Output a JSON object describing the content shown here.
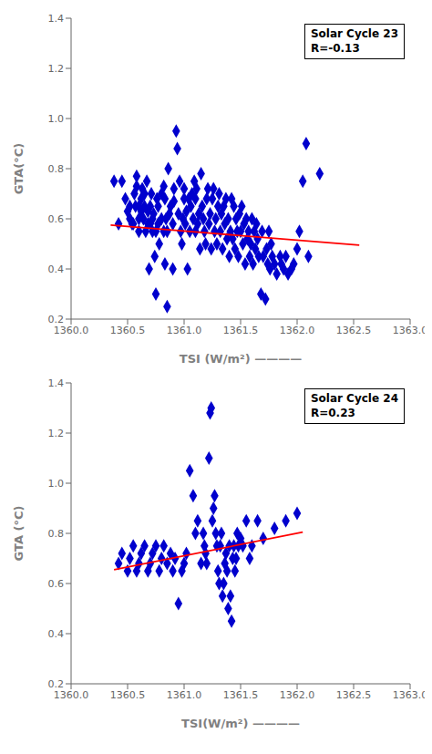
{
  "chart_data": [
    {
      "type": "scatter",
      "title": "Solar Cycle 23\nR=-0.13",
      "x_label": "TSI (W/m²) ————",
      "y_label": "GTA(°C)",
      "xlim": [
        1360.0,
        1363.0
      ],
      "ylim": [
        0.2,
        1.4
      ],
      "xticks": [
        {
          "value": 1360.0,
          "label": "1360.0"
        },
        1360.5,
        {
          "value": 1361.0,
          "label": "1361.0"
        },
        1361.5,
        {
          "value": 1362.0,
          "label": "1362.0"
        },
        1362.5,
        {
          "value": 1363.0,
          "label": "1363.0"
        }
      ],
      "yticks": [
        0.2,
        0.4,
        0.6,
        0.8,
        {
          "value": 1.0,
          "label": "1.0"
        },
        1.2,
        1.4
      ],
      "grid": false,
      "series": [
        {
          "type": "scatter",
          "color": "#0000CD",
          "marker": "diamond",
          "x": [
            1360.38,
            1360.42,
            1360.45,
            1360.48,
            1360.5,
            1360.52,
            1360.52,
            1360.54,
            1360.55,
            1360.56,
            1360.57,
            1360.58,
            1360.58,
            1360.6,
            1360.6,
            1360.6,
            1360.62,
            1360.62,
            1360.63,
            1360.64,
            1360.65,
            1360.65,
            1360.66,
            1360.67,
            1360.68,
            1360.68,
            1360.69,
            1360.7,
            1360.7,
            1360.71,
            1360.72,
            1360.72,
            1360.73,
            1360.74,
            1360.75,
            1360.75,
            1360.76,
            1360.77,
            1360.77,
            1360.78,
            1360.8,
            1360.8,
            1360.82,
            1360.82,
            1360.83,
            1360.83,
            1360.84,
            1360.85,
            1360.85,
            1360.86,
            1360.87,
            1360.88,
            1360.9,
            1360.9,
            1360.91,
            1360.91,
            1360.93,
            1360.94,
            1360.95,
            1360.96,
            1360.97,
            1360.98,
            1360.99,
            1361.0,
            1361.0,
            1361.01,
            1361.02,
            1361.03,
            1361.04,
            1361.05,
            1361.06,
            1361.07,
            1361.08,
            1361.09,
            1361.1,
            1361.1,
            1361.11,
            1361.12,
            1361.13,
            1361.14,
            1361.15,
            1361.16,
            1361.17,
            1361.18,
            1361.19,
            1361.2,
            1361.21,
            1361.22,
            1361.23,
            1361.24,
            1361.25,
            1361.26,
            1361.27,
            1361.28,
            1361.29,
            1361.3,
            1361.31,
            1361.32,
            1361.33,
            1361.34,
            1361.35,
            1361.36,
            1361.37,
            1361.38,
            1361.39,
            1361.4,
            1361.41,
            1361.42,
            1361.43,
            1361.44,
            1361.45,
            1361.46,
            1361.47,
            1361.48,
            1361.49,
            1361.5,
            1361.51,
            1361.52,
            1361.53,
            1361.54,
            1361.55,
            1361.56,
            1361.57,
            1361.58,
            1361.59,
            1361.6,
            1361.61,
            1361.62,
            1361.63,
            1361.64,
            1361.65,
            1361.66,
            1361.68,
            1361.69,
            1361.7,
            1361.72,
            1361.73,
            1361.74,
            1361.75,
            1361.76,
            1361.77,
            1361.78,
            1361.8,
            1361.82,
            1361.85,
            1361.86,
            1361.88,
            1361.9,
            1361.92,
            1361.95,
            1361.97,
            1362.0,
            1362.02,
            1362.05,
            1362.08,
            1362.1,
            1362.2
          ],
          "values": [
            0.75,
            0.58,
            0.75,
            0.68,
            0.63,
            0.6,
            0.65,
            0.58,
            0.58,
            0.7,
            0.65,
            0.73,
            0.77,
            0.55,
            0.6,
            0.65,
            0.63,
            0.68,
            0.72,
            0.6,
            0.65,
            0.7,
            0.55,
            0.75,
            0.58,
            0.63,
            0.4,
            0.58,
            0.65,
            0.7,
            0.55,
            0.6,
            0.62,
            0.45,
            0.3,
            0.55,
            0.68,
            0.58,
            0.65,
            0.5,
            0.6,
            0.7,
            0.55,
            0.73,
            0.42,
            0.68,
            0.6,
            0.25,
            0.55,
            0.8,
            0.62,
            0.65,
            0.4,
            0.58,
            0.67,
            0.72,
            0.95,
            0.88,
            0.62,
            0.75,
            0.55,
            0.5,
            0.6,
            0.68,
            0.72,
            0.58,
            0.63,
            0.4,
            0.68,
            0.55,
            0.65,
            0.7,
            0.6,
            0.75,
            0.55,
            0.68,
            0.72,
            0.58,
            0.62,
            0.48,
            0.78,
            0.65,
            0.6,
            0.55,
            0.5,
            0.68,
            0.72,
            0.58,
            0.62,
            0.48,
            0.68,
            0.72,
            0.55,
            0.6,
            0.5,
            0.65,
            0.7,
            0.55,
            0.62,
            0.48,
            0.65,
            0.58,
            0.68,
            0.52,
            0.6,
            0.45,
            0.55,
            0.68,
            0.52,
            0.65,
            0.48,
            0.6,
            0.55,
            0.45,
            0.62,
            0.55,
            0.65,
            0.5,
            0.58,
            0.42,
            0.6,
            0.52,
            0.55,
            0.45,
            0.5,
            0.6,
            0.42,
            0.55,
            0.48,
            0.58,
            0.52,
            0.45,
            0.3,
            0.55,
            0.45,
            0.28,
            0.48,
            0.42,
            0.55,
            0.4,
            0.5,
            0.45,
            0.42,
            0.38,
            0.45,
            0.42,
            0.4,
            0.45,
            0.38,
            0.4,
            0.42,
            0.48,
            0.55,
            0.75,
            0.9,
            0.45,
            0.78
          ]
        },
        {
          "type": "line",
          "color": "#FF0000",
          "x": [
            1360.35,
            1362.55
          ],
          "values": [
            0.575,
            0.495
          ]
        }
      ]
    },
    {
      "type": "scatter",
      "title": "Solar Cycle 24\nR=0.23",
      "x_label": "TSI(W/m²) ————",
      "y_label": "GTA (°C)",
      "xlim": [
        1360.0,
        1363.0
      ],
      "ylim": [
        0.2,
        1.4
      ],
      "xticks": [
        {
          "value": 1360.0,
          "label": "1360.0"
        },
        1360.5,
        {
          "value": 1361.0,
          "label": "1361.0"
        },
        1361.5,
        {
          "value": 1362.0,
          "label": "1362.0"
        },
        1362.5,
        {
          "value": 1363.0,
          "label": "1363.0"
        }
      ],
      "yticks": [
        0.2,
        0.4,
        0.6,
        0.8,
        {
          "value": 1.0,
          "label": "1.0"
        },
        1.2,
        1.4
      ],
      "grid": false,
      "series": [
        {
          "type": "scatter",
          "color": "#0000CD",
          "marker": "diamond",
          "x": [
            1360.42,
            1360.45,
            1360.5,
            1360.52,
            1360.55,
            1360.58,
            1360.6,
            1360.62,
            1360.65,
            1360.68,
            1360.7,
            1360.72,
            1360.75,
            1360.78,
            1360.8,
            1360.82,
            1360.85,
            1360.88,
            1360.9,
            1360.92,
            1360.95,
            1360.98,
            1361.0,
            1361.02,
            1361.05,
            1361.08,
            1361.1,
            1361.12,
            1361.15,
            1361.17,
            1361.18,
            1361.19,
            1361.2,
            1361.22,
            1361.23,
            1361.24,
            1361.25,
            1361.26,
            1361.27,
            1361.28,
            1361.29,
            1361.3,
            1361.31,
            1361.32,
            1361.33,
            1361.34,
            1361.35,
            1361.36,
            1361.37,
            1361.38,
            1361.39,
            1361.4,
            1361.41,
            1361.42,
            1361.43,
            1361.44,
            1361.45,
            1361.46,
            1361.47,
            1361.48,
            1361.5,
            1361.52,
            1361.55,
            1361.58,
            1361.6,
            1361.65,
            1361.7,
            1361.8,
            1361.9,
            1362.0
          ],
          "values": [
            0.68,
            0.72,
            0.65,
            0.7,
            0.75,
            0.65,
            0.68,
            0.72,
            0.75,
            0.65,
            0.68,
            0.72,
            0.75,
            0.65,
            0.7,
            0.75,
            0.68,
            0.72,
            0.65,
            0.7,
            0.52,
            0.65,
            0.68,
            0.72,
            1.05,
            0.95,
            0.8,
            0.85,
            0.68,
            0.8,
            0.75,
            0.72,
            0.68,
            1.1,
            1.28,
            1.3,
            0.85,
            0.9,
            0.95,
            0.8,
            0.75,
            0.65,
            0.6,
            0.75,
            0.8,
            0.55,
            0.6,
            0.68,
            0.72,
            0.65,
            0.5,
            0.75,
            0.55,
            0.45,
            0.7,
            0.75,
            0.65,
            0.7,
            0.8,
            0.75,
            0.78,
            0.75,
            0.85,
            0.7,
            0.75,
            0.85,
            0.78,
            0.82,
            0.85,
            0.88
          ]
        },
        {
          "type": "line",
          "color": "#FF0000",
          "x": [
            1360.38,
            1362.05
          ],
          "values": [
            0.655,
            0.805
          ]
        }
      ]
    }
  ]
}
